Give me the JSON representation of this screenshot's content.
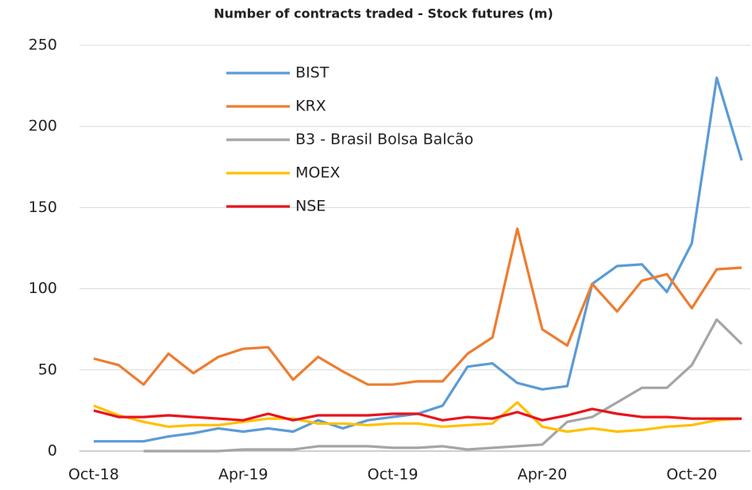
{
  "chart_data": {
    "type": "line",
    "title": "Number of contracts traded - Stock futures (m)",
    "categories": [
      "Oct-18",
      null,
      null,
      null,
      null,
      null,
      "Apr-19",
      null,
      null,
      null,
      null,
      null,
      "Oct-19",
      null,
      null,
      null,
      null,
      null,
      "Apr-20",
      null,
      null,
      null,
      null,
      null,
      "Oct-20",
      null,
      null
    ],
    "series": [
      {
        "name": "BIST",
        "color": "#5b9bd5",
        "values": [
          6,
          6,
          6,
          9,
          11,
          14,
          12,
          14,
          12,
          19,
          14,
          19,
          21,
          23,
          28,
          52,
          54,
          42,
          38,
          40,
          103,
          114,
          115,
          98,
          128,
          230,
          179
        ]
      },
      {
        "name": "KRX",
        "color": "#ed7d31",
        "values": [
          57,
          53,
          41,
          60,
          48,
          58,
          63,
          64,
          44,
          58,
          49,
          41,
          41,
          43,
          43,
          60,
          70,
          137,
          75,
          65,
          103,
          86,
          105,
          109,
          88,
          112,
          113
        ]
      },
      {
        "name": "B3 - Brasil Bolsa Balcão",
        "color": "#a5a5a5",
        "values": [
          null,
          null,
          0,
          0,
          0,
          0,
          1,
          1,
          1,
          3,
          3,
          3,
          2,
          2,
          3,
          1,
          2,
          3,
          4,
          18,
          21,
          30,
          39,
          39,
          53,
          81,
          66
        ]
      },
      {
        "name": "MOEX",
        "color": "#ffc000",
        "values": [
          28,
          22,
          18,
          15,
          16,
          16,
          18,
          20,
          20,
          17,
          17,
          16,
          17,
          17,
          15,
          16,
          17,
          30,
          15,
          12,
          14,
          12,
          13,
          15,
          16,
          19,
          20
        ]
      },
      {
        "name": "NSE",
        "color": "#e8141b",
        "values": [
          25,
          21,
          21,
          22,
          21,
          20,
          19,
          23,
          19,
          22,
          22,
          22,
          23,
          23,
          19,
          21,
          20,
          24,
          19,
          22,
          26,
          23,
          21,
          21,
          20,
          20,
          20
        ]
      }
    ],
    "ylim": [
      0,
      250
    ],
    "yticks": [
      0,
      50,
      100,
      150,
      200,
      250
    ],
    "grid": true,
    "legend": "upper-left"
  }
}
